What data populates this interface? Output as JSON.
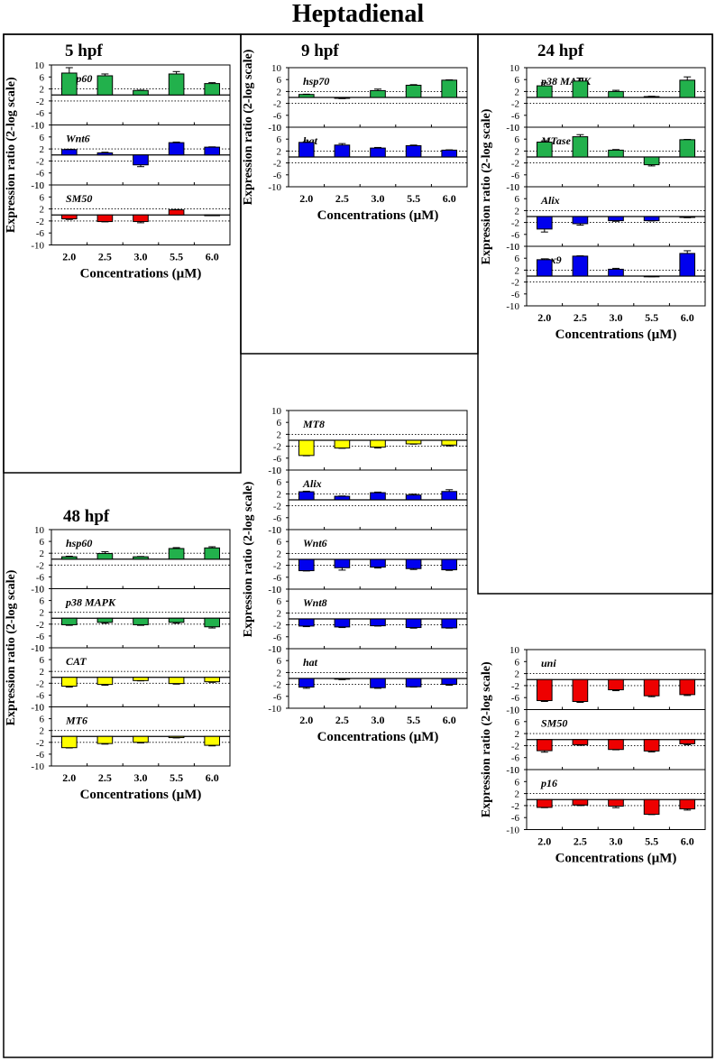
{
  "title": "Heptadienal",
  "colors": {
    "green": "#22b14c",
    "blue": "#0000ee",
    "red": "#ee0000",
    "yellow": "#ffff00"
  },
  "chart_data": [
    {
      "type": "bar",
      "timepoint": "5 hpf",
      "ylabel": "Expression ratio (2-log scale)",
      "xlabel": "Concentrations (µM)",
      "categories": [
        "2.0",
        "2.5",
        "3.0",
        "5.5",
        "6.0"
      ],
      "yticks": [
        "10",
        "6",
        "2",
        "-2",
        "-6",
        "-10"
      ],
      "ylim": [
        -10,
        10
      ],
      "threshold_lines": [
        2,
        -2
      ],
      "grid": false,
      "series": [
        {
          "name": "hsp60",
          "color": "green",
          "values": [
            7.3,
            6.4,
            1.5,
            7.0,
            3.8
          ],
          "errors": [
            1.8,
            0.6,
            0.1,
            0.8,
            0.3
          ]
        },
        {
          "name": "Wnt6",
          "color": "blue",
          "values": [
            1.8,
            0.7,
            -3.3,
            4.1,
            2.6
          ],
          "errors": [
            0.1,
            0.2,
            0.6,
            0.2,
            0.1
          ]
        },
        {
          "name": "SM50",
          "color": "red",
          "values": [
            -1.3,
            -2.2,
            -2.2,
            1.7,
            -0.1
          ],
          "errors": [
            0.2,
            0.1,
            0.4,
            0.1,
            0.1
          ]
        }
      ]
    },
    {
      "type": "bar",
      "timepoint": "9 hpf",
      "ylabel": "Expression ratio (2-log scale)",
      "xlabel": "Concentrations (µM)",
      "categories": [
        "2.0",
        "2.5",
        "3.0",
        "5.5",
        "6.0"
      ],
      "yticks": [
        "10",
        "6",
        "2",
        "-2",
        "-6",
        "-10"
      ],
      "ylim": [
        -10,
        10
      ],
      "threshold_lines": [
        2,
        -2
      ],
      "grid": false,
      "series": [
        {
          "name": "hsp70",
          "color": "green",
          "values": [
            1.0,
            -0.3,
            2.3,
            4.1,
            5.8
          ],
          "errors": [
            0.1,
            0.1,
            0.5,
            0.2,
            0.1
          ]
        },
        {
          "name": "hat",
          "color": "blue",
          "values": [
            4.9,
            4.0,
            3.0,
            3.8,
            2.3
          ],
          "errors": [
            0.2,
            0.5,
            0.2,
            0.2,
            0.1
          ]
        }
      ]
    },
    {
      "type": "bar",
      "timepoint": "24 hpf",
      "ylabel": "Expression ratio (2-log scale)",
      "xlabel": "Concentrations (µM)",
      "categories": [
        "2.0",
        "2.5",
        "3.0",
        "5.5",
        "6.0"
      ],
      "yticks": [
        "10",
        "6",
        "2",
        "-2",
        "-6",
        "-10"
      ],
      "ylim": [
        -10,
        10
      ],
      "threshold_lines": [
        2,
        -2
      ],
      "grid": false,
      "series": [
        {
          "name": "p38 MAPK",
          "color": "green",
          "values": [
            3.9,
            5.5,
            2.0,
            0.3,
            5.8
          ],
          "errors": [
            1.0,
            1.0,
            0.4,
            0.1,
            1.1
          ]
        },
        {
          "name": "MTase",
          "color": "green",
          "values": [
            5.0,
            6.8,
            2.3,
            -2.6,
            5.8
          ],
          "errors": [
            0.4,
            0.7,
            0.2,
            0.4,
            0.1
          ]
        },
        {
          "name": "Alix",
          "color": "blue",
          "values": [
            -4.2,
            -2.4,
            -1.4,
            -1.4,
            -0.3
          ],
          "errors": [
            1.0,
            0.5,
            0.2,
            0.1,
            0.1
          ]
        },
        {
          "name": "sox9",
          "color": "blue",
          "values": [
            5.5,
            6.7,
            2.3,
            -0.1,
            7.6
          ],
          "errors": [
            0.3,
            0.1,
            0.3,
            0.1,
            0.9
          ]
        }
      ]
    },
    {
      "type": "bar",
      "timepoint": "48 hpf",
      "ylabel": "Expression ratio (2-log scale)",
      "xlabel": "Concentrations (µM)",
      "categories": [
        "2.0",
        "2.5",
        "3.0",
        "5.5",
        "6.0"
      ],
      "yticks": [
        "10",
        "6",
        "2",
        "-2",
        "-6",
        "-10"
      ],
      "ylim": [
        -10,
        10
      ],
      "threshold_lines": [
        2,
        -2
      ],
      "grid": false,
      "series": [
        {
          "name": "hsp60",
          "color": "green",
          "values": [
            0.8,
            1.9,
            0.8,
            3.6,
            3.8
          ],
          "errors": [
            0.2,
            0.6,
            0.1,
            0.3,
            0.4
          ]
        },
        {
          "name": "p38 MAPK",
          "color": "green",
          "values": [
            -2.2,
            -1.4,
            -2.2,
            -1.4,
            -2.9
          ],
          "errors": [
            0.2,
            0.3,
            0.2,
            0.3,
            0.4
          ]
        },
        {
          "name": "CAT",
          "color": "yellow",
          "values": [
            -3.0,
            -2.4,
            -1.1,
            -2.1,
            -1.5
          ],
          "errors": [
            0.3,
            0.3,
            0.1,
            0.2,
            0.2
          ]
        },
        {
          "name": "MT6",
          "color": "yellow",
          "values": [
            -3.8,
            -2.4,
            -2.0,
            -0.4,
            -3.0
          ],
          "errors": [
            0.1,
            0.2,
            0.2,
            0.1,
            0.2
          ]
        }
      ]
    },
    {
      "type": "bar",
      "timepoint": "",
      "ylabel": "Expression ratio (2-log scale)",
      "xlabel": "Concentrations (µM)",
      "categories": [
        "2.0",
        "2.5",
        "3.0",
        "5.5",
        "6.0"
      ],
      "yticks": [
        "10",
        "6",
        "2",
        "-2",
        "-6",
        "-10"
      ],
      "ylim": [
        -10,
        10
      ],
      "threshold_lines": [
        2,
        -2
      ],
      "grid": false,
      "series": [
        {
          "name": "MT8",
          "color": "yellow",
          "values": [
            -5.1,
            -2.6,
            -2.3,
            -1.2,
            -1.6
          ],
          "errors": [
            0.1,
            0.1,
            0.3,
            0.1,
            0.3
          ]
        },
        {
          "name": "Alix",
          "color": "blue",
          "values": [
            2.7,
            1.2,
            2.4,
            1.6,
            2.8
          ],
          "errors": [
            0.2,
            0.1,
            0.2,
            0.3,
            0.6
          ]
        },
        {
          "name": "Wnt6",
          "color": "blue",
          "values": [
            -3.8,
            -2.8,
            -2.6,
            -3.1,
            -3.5
          ],
          "errors": [
            0.1,
            0.8,
            0.3,
            0.3,
            0.2
          ]
        },
        {
          "name": "Wnt8",
          "color": "blue",
          "values": [
            -2.4,
            -2.7,
            -2.3,
            -2.9,
            -3.0
          ],
          "errors": [
            0.2,
            0.2,
            0.1,
            0.2,
            0.1
          ]
        },
        {
          "name": "hat",
          "color": "blue",
          "values": [
            -2.9,
            -0.2,
            -3.1,
            -2.8,
            -2.0
          ],
          "errors": [
            0.4,
            0.2,
            0.2,
            0.1,
            0.3
          ]
        }
      ]
    },
    {
      "type": "bar",
      "timepoint": "",
      "ylabel": "Expression ratio (2-log scale)",
      "xlabel": "Concentrations (µM)",
      "categories": [
        "2.0",
        "2.5",
        "3.0",
        "5.5",
        "6.0"
      ],
      "yticks": [
        "10",
        "6",
        "2",
        "-2",
        "-6",
        "-10"
      ],
      "ylim": [
        -10,
        10
      ],
      "threshold_lines": [
        2,
        -2
      ],
      "grid": false,
      "series": [
        {
          "name": "uni",
          "color": "red",
          "values": [
            -7.0,
            -7.3,
            -3.4,
            -5.4,
            -5.0
          ],
          "errors": [
            0.3,
            0.3,
            0.3,
            0.3,
            0.3
          ]
        },
        {
          "name": "SM50",
          "color": "red",
          "values": [
            -3.7,
            -1.7,
            -3.3,
            -3.8,
            -1.4
          ],
          "errors": [
            0.5,
            0.2,
            0.1,
            0.3,
            0.3
          ]
        },
        {
          "name": "p16",
          "color": "red",
          "values": [
            -2.6,
            -1.8,
            -2.2,
            -4.9,
            -3.1
          ],
          "errors": [
            0.1,
            0.2,
            0.5,
            0.1,
            0.4
          ]
        }
      ]
    }
  ]
}
